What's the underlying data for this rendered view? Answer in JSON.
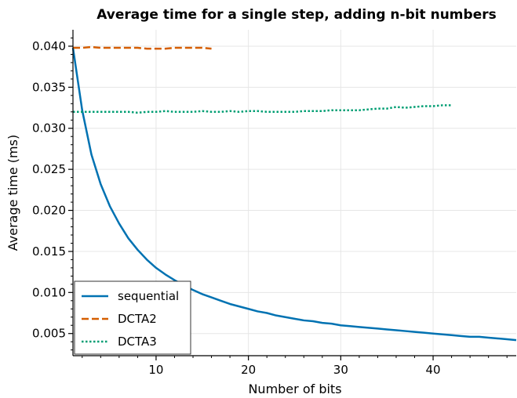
{
  "chart_data": {
    "type": "line",
    "title": "Average time for a single step, adding n-bit numbers",
    "xlabel": "Number of bits",
    "ylabel": "Average time (ms)",
    "xlim": [
      1,
      49
    ],
    "ylim": [
      0.0023,
      0.042
    ],
    "xticks": [
      10,
      20,
      30,
      40
    ],
    "xtick_labels": [
      "10",
      "20",
      "30",
      "40"
    ],
    "yticks": [
      0.005,
      0.01,
      0.015,
      0.02,
      0.025,
      0.03,
      0.035,
      0.04
    ],
    "ytick_labels": [
      "0.005",
      "0.010",
      "0.015",
      "0.020",
      "0.025",
      "0.030",
      "0.035",
      "0.040"
    ],
    "grid": true,
    "legend_position": "bottom-left",
    "series": [
      {
        "name": "sequential",
        "color": "#0072b2",
        "dash": "solid",
        "x": [
          1,
          2,
          3,
          4,
          5,
          6,
          7,
          8,
          9,
          10,
          11,
          12,
          13,
          14,
          15,
          16,
          17,
          18,
          19,
          20,
          21,
          22,
          23,
          24,
          25,
          26,
          27,
          28,
          29,
          30,
          31,
          32,
          33,
          34,
          35,
          36,
          37,
          38,
          39,
          40,
          41,
          42,
          43,
          44,
          45,
          46,
          47,
          48,
          49
        ],
        "y": [
          0.0398,
          0.0322,
          0.0268,
          0.0232,
          0.0205,
          0.0184,
          0.0166,
          0.0152,
          0.014,
          0.013,
          0.0122,
          0.0115,
          0.0109,
          0.0103,
          0.0098,
          0.0094,
          0.009,
          0.0086,
          0.0083,
          0.008,
          0.0077,
          0.0075,
          0.0072,
          0.007,
          0.0068,
          0.0066,
          0.0065,
          0.0063,
          0.0062,
          0.006,
          0.0059,
          0.0058,
          0.0057,
          0.0056,
          0.0055,
          0.0054,
          0.0053,
          0.0052,
          0.0051,
          0.005,
          0.0049,
          0.0048,
          0.0047,
          0.0046,
          0.0046,
          0.0045,
          0.0044,
          0.0043,
          0.0042
        ]
      },
      {
        "name": "DCTA2",
        "color": "#d55e00",
        "dash": "dashed",
        "x": [
          1,
          2,
          3,
          4,
          5,
          6,
          7,
          8,
          9,
          10,
          11,
          12,
          13,
          14,
          15,
          16
        ],
        "y": [
          0.0398,
          0.0398,
          0.0399,
          0.0398,
          0.0398,
          0.0398,
          0.0398,
          0.0398,
          0.0397,
          0.0397,
          0.0397,
          0.0398,
          0.0398,
          0.0398,
          0.0398,
          0.0397
        ]
      },
      {
        "name": "DCTA3",
        "color": "#009e73",
        "dash": "dotted",
        "x": [
          1,
          2,
          3,
          4,
          5,
          6,
          7,
          8,
          9,
          10,
          11,
          12,
          13,
          14,
          15,
          16,
          17,
          18,
          19,
          20,
          21,
          22,
          23,
          24,
          25,
          26,
          27,
          28,
          29,
          30,
          31,
          32,
          33,
          34,
          35,
          36,
          37,
          38,
          39,
          40,
          41,
          42
        ],
        "y": [
          0.032,
          0.032,
          0.032,
          0.032,
          0.032,
          0.032,
          0.032,
          0.0319,
          0.032,
          0.032,
          0.0321,
          0.032,
          0.032,
          0.032,
          0.0321,
          0.032,
          0.032,
          0.0321,
          0.032,
          0.0321,
          0.0321,
          0.032,
          0.032,
          0.032,
          0.032,
          0.0321,
          0.0321,
          0.0321,
          0.0322,
          0.0322,
          0.0322,
          0.0322,
          0.0323,
          0.0324,
          0.0324,
          0.0326,
          0.0325,
          0.0326,
          0.0327,
          0.0327,
          0.0328,
          0.0328
        ]
      }
    ]
  }
}
